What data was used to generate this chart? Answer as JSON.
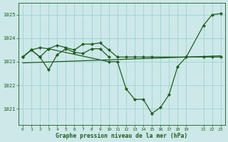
{
  "bg_color": "#cce8e8",
  "grid_color": "#99cccc",
  "line_color": "#1f5c1f",
  "xlabel": "Graphe pression niveau de la mer (hPa)",
  "ylim": [
    1020.3,
    1025.5
  ],
  "yticks": [
    1021,
    1022,
    1023,
    1024,
    1025
  ],
  "xticks": [
    0,
    1,
    2,
    3,
    4,
    5,
    6,
    7,
    8,
    9,
    10,
    11,
    12,
    13,
    14,
    15,
    16,
    17,
    18,
    19,
    21,
    22,
    23
  ],
  "series": [
    {
      "x": [
        0,
        1,
        2,
        3,
        4,
        5,
        6,
        7,
        8,
        9,
        10
      ],
      "y": [
        1023.2,
        1023.5,
        1023.2,
        1022.65,
        1023.3,
        1023.55,
        1023.4,
        1023.35,
        1023.55,
        1023.55,
        1023.2
      ],
      "has_markers": true,
      "lw": 0.9
    },
    {
      "x": [
        0,
        1,
        2,
        3,
        4,
        5,
        6,
        7,
        8,
        9,
        10,
        11,
        12,
        13,
        14,
        15,
        19,
        21,
        22,
        23
      ],
      "y": [
        1023.2,
        1023.5,
        1023.6,
        1023.55,
        1023.7,
        1023.6,
        1023.5,
        1023.75,
        1023.75,
        1023.8,
        1023.5,
        1023.2,
        1023.2,
        1023.2,
        1023.2,
        1023.2,
        1023.2,
        1023.2,
        1023.2,
        1023.2
      ],
      "has_markers": true,
      "lw": 0.9
    },
    {
      "x": [
        0,
        23
      ],
      "y": [
        1022.95,
        1023.25
      ],
      "has_markers": false,
      "lw": 0.9
    },
    {
      "x": [
        0,
        1,
        2,
        3,
        10,
        11,
        12,
        13,
        14,
        15,
        16,
        17,
        18,
        19,
        21,
        22,
        23
      ],
      "y": [
        1023.2,
        1023.5,
        1023.2,
        1023.55,
        1023.0,
        1023.0,
        1021.85,
        1021.4,
        1021.4,
        1020.8,
        1021.05,
        1021.6,
        1022.8,
        1023.2,
        1024.55,
        1025.0,
        1025.05
      ],
      "has_markers": true,
      "lw": 0.9
    }
  ]
}
